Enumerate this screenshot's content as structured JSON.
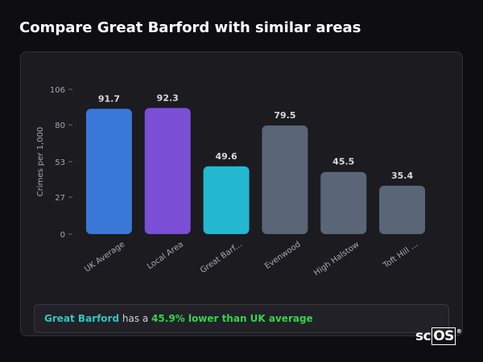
{
  "page": {
    "title": "Compare Great Barford with similar areas"
  },
  "chart_data": {
    "type": "bar",
    "title": "",
    "xlabel": "",
    "ylabel": "Crimes per 1,000",
    "ylim": [
      0,
      106
    ],
    "yticks": [
      0,
      27,
      53,
      80,
      106
    ],
    "grid": false,
    "categories": [
      "UK Average",
      "Local Area",
      "Great Barf...",
      "Evenwood",
      "High Halstow",
      "Toft Hill ..."
    ],
    "values": [
      91.7,
      92.3,
      49.6,
      79.5,
      45.5,
      35.4
    ],
    "value_labels": [
      "91.7",
      "92.3",
      "49.6",
      "79.5",
      "45.5",
      "35.4"
    ],
    "colors": [
      "#3a78d8",
      "#7a4fd6",
      "#22b8d0",
      "#5a6578",
      "#5a6578",
      "#5a6578"
    ]
  },
  "footer": {
    "area_name": "Great Barford",
    "text_mid": " has a ",
    "difference": "45.9% lower than UK average"
  },
  "logo": {
    "prefix": "sc",
    "boxed": "OS",
    "mark": "®"
  }
}
